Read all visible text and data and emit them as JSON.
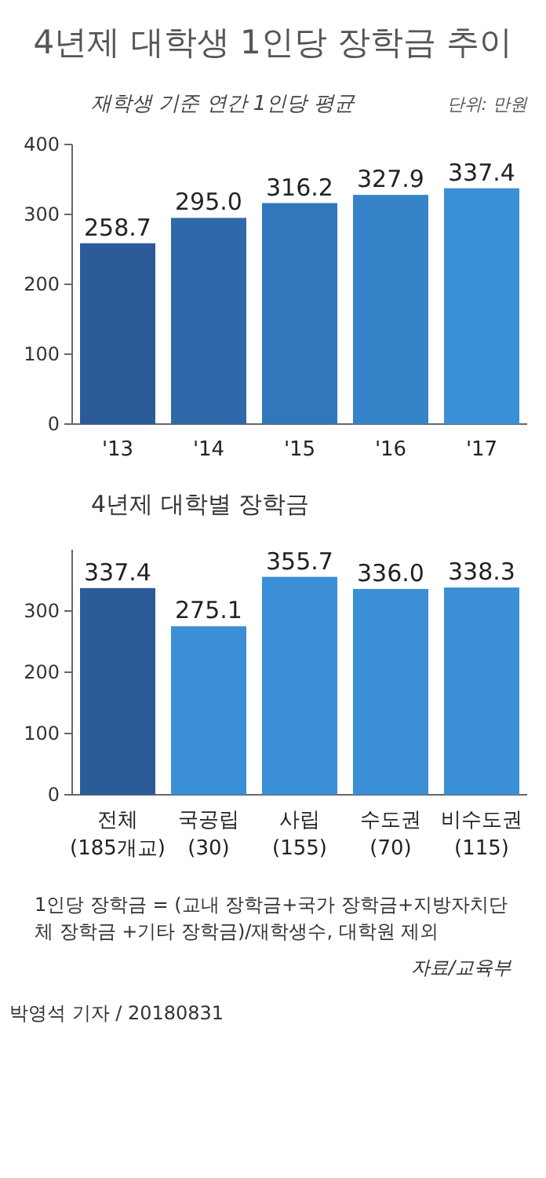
{
  "chart_data": [
    {
      "type": "bar",
      "title": "4년제 대학생 1인당 장학금 추이",
      "subtitle": "재학생 기준 연간 1인당 평균",
      "annotations": [
        "단위: 만원"
      ],
      "categories": [
        "'13",
        "'14",
        "'15",
        "'16",
        "'17"
      ],
      "values": [
        258.7,
        295.0,
        316.2,
        327.9,
        337.4
      ],
      "colors": [
        "#2c5b9a",
        "#2f69aa",
        "#3277bb",
        "#3583c8",
        "#3a90d6"
      ],
      "ylim": [
        0,
        400
      ],
      "yticks": [
        0,
        100,
        200,
        300,
        400
      ],
      "value_labels": [
        "258.7",
        "295.0",
        "316.2",
        "327.9",
        "337.4"
      ]
    },
    {
      "type": "bar",
      "title": "4년제 대학별 장학금",
      "categories": [
        "전체 (185개교)",
        "국공립 (30)",
        "사립 (155)",
        "수도권 (70)",
        "비수도권 (115)"
      ],
      "values": [
        337.4,
        275.1,
        355.7,
        336.0,
        338.3
      ],
      "colors": [
        "#2c5b9a",
        "#3a8fd6",
        "#3a8fd6",
        "#3a8fd6",
        "#3a8fd6"
      ],
      "ylim": [
        0,
        400
      ],
      "yticks": [
        0,
        100,
        200,
        300
      ],
      "value_labels": [
        "337.4",
        "275.1",
        "355.7",
        "336.0",
        "338.3"
      ],
      "annotations": [
        "1인당 장학금 = (교내 장학금+국가 장학금+지방자치단체 장학금 +기타 장학금)/재학생수, 대학원 제외",
        "자료/교육부",
        "박영석 기자 / 20180831"
      ]
    }
  ]
}
